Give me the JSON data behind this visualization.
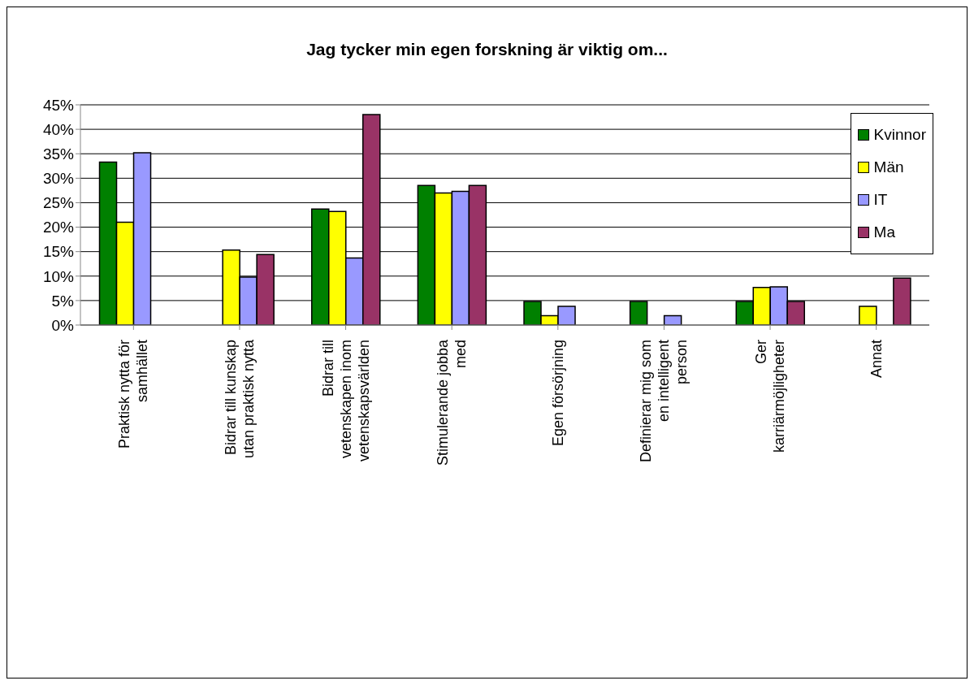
{
  "chart_data": {
    "type": "bar",
    "title": "Jag tycker min egen forskning är viktig om...",
    "categories": [
      "Praktisk nytta för samhället",
      "Bidrar till kunskap utan praktisk nytta",
      "Bidrar till vetenskapen inom vetenskapsvärlden",
      "Stimulerande jobba med",
      "Egen försörjning",
      "Definierar mig som en intelligent person",
      "Ger karriärmöjligheter",
      "Annat"
    ],
    "series": [
      {
        "name": "Kvinnor",
        "color": "#008000",
        "values": [
          33.3,
          0,
          23.7,
          28.5,
          4.8,
          4.8,
          4.8,
          0
        ]
      },
      {
        "name": "Män",
        "color": "#ffff00",
        "values": [
          21.0,
          15.3,
          23.2,
          27.0,
          1.9,
          0,
          7.7,
          3.8
        ]
      },
      {
        "name": "IT",
        "color": "#9999ff",
        "values": [
          35.2,
          9.8,
          13.7,
          27.3,
          3.8,
          1.9,
          7.8,
          0
        ]
      },
      {
        "name": "Ma",
        "color": "#993366",
        "values": [
          0,
          14.4,
          43.0,
          28.5,
          0,
          0,
          4.8,
          9.6
        ]
      }
    ],
    "ylim": [
      0,
      45
    ],
    "yticks": [
      {
        "value": 0,
        "label": "0%"
      },
      {
        "value": 5,
        "label": "5%"
      },
      {
        "value": 10,
        "label": "10%"
      },
      {
        "value": 15,
        "label": "15%"
      },
      {
        "value": 20,
        "label": "20%"
      },
      {
        "value": 25,
        "label": "25%"
      },
      {
        "value": 30,
        "label": "30%"
      },
      {
        "value": 35,
        "label": "35%"
      },
      {
        "value": 40,
        "label": "40%"
      },
      {
        "value": 45,
        "label": "45%"
      }
    ],
    "grid": "y",
    "legend": "top right"
  }
}
